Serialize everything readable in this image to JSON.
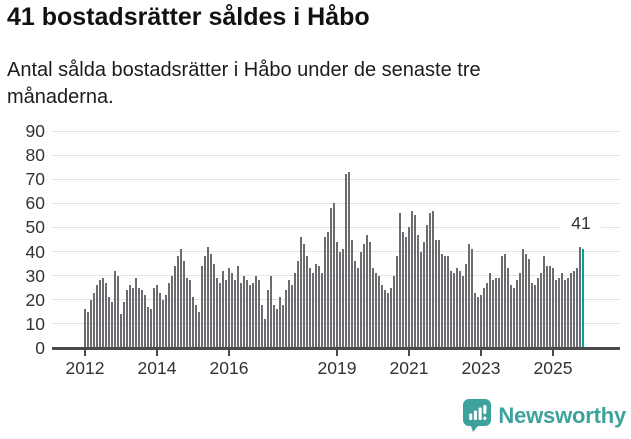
{
  "header": {
    "title": "41 bostadsrätter såldes i Håbo",
    "subtitle": "Antal sålda bostadsrätter i Håbo under de senaste tre månaderna."
  },
  "chart_data": {
    "type": "bar",
    "title": "41 bostadsrätter såldes i Håbo",
    "subtitle": "Antal sålda bostadsrätter i Håbo under de senaste tre månaderna.",
    "xlabel": "",
    "ylabel": "",
    "ylim": [
      0,
      90
    ],
    "grid": true,
    "legend": "none",
    "y_ticks": [
      0,
      10,
      20,
      30,
      40,
      50,
      60,
      70,
      80,
      90
    ],
    "x_ticks": [
      {
        "label": "2012",
        "index": 0
      },
      {
        "label": "2014",
        "index": 24
      },
      {
        "label": "2016",
        "index": 48
      },
      {
        "label": "2019",
        "index": 84
      },
      {
        "label": "2021",
        "index": 108
      },
      {
        "label": "2023",
        "index": 132
      },
      {
        "label": "2025",
        "index": 156
      }
    ],
    "bar_color": "#6b6b70",
    "highlight_color": "#00a49e",
    "highlight_index": 166,
    "highlight_label": "41",
    "values": [
      16,
      15,
      20,
      23,
      26,
      28,
      29,
      27,
      21,
      19,
      32,
      30,
      14,
      19,
      24,
      26,
      25,
      29,
      25,
      24,
      22,
      17,
      16,
      25,
      26,
      23,
      20,
      22,
      27,
      30,
      34,
      38,
      41,
      36,
      29,
      28,
      21,
      18,
      15,
      34,
      38,
      42,
      39,
      35,
      29,
      27,
      32,
      28,
      33,
      31,
      28,
      34,
      27,
      30,
      28,
      26,
      27,
      30,
      28,
      18,
      12,
      24,
      30,
      18,
      16,
      21,
      18,
      24,
      28,
      26,
      31,
      36,
      46,
      43,
      38,
      33,
      31,
      35,
      34,
      31,
      46,
      48,
      58,
      60,
      44,
      40,
      41,
      72,
      73,
      45,
      36,
      33,
      40,
      43,
      47,
      44,
      33,
      31,
      30,
      26,
      24,
      23,
      25,
      30,
      38,
      56,
      48,
      46,
      50,
      57,
      55,
      47,
      40,
      44,
      51,
      56,
      57,
      45,
      45,
      39,
      38,
      38,
      32,
      31,
      33,
      32,
      30,
      35,
      43,
      41,
      23,
      21,
      22,
      25,
      27,
      31,
      28,
      29,
      29,
      38,
      39,
      33,
      26,
      25,
      28,
      31,
      41,
      39,
      37,
      27,
      26,
      29,
      31,
      38,
      34,
      34,
      33,
      28,
      29,
      31,
      28,
      29,
      31,
      32,
      33,
      42,
      41
    ]
  },
  "footer": {
    "brand": "Newsworthy"
  }
}
